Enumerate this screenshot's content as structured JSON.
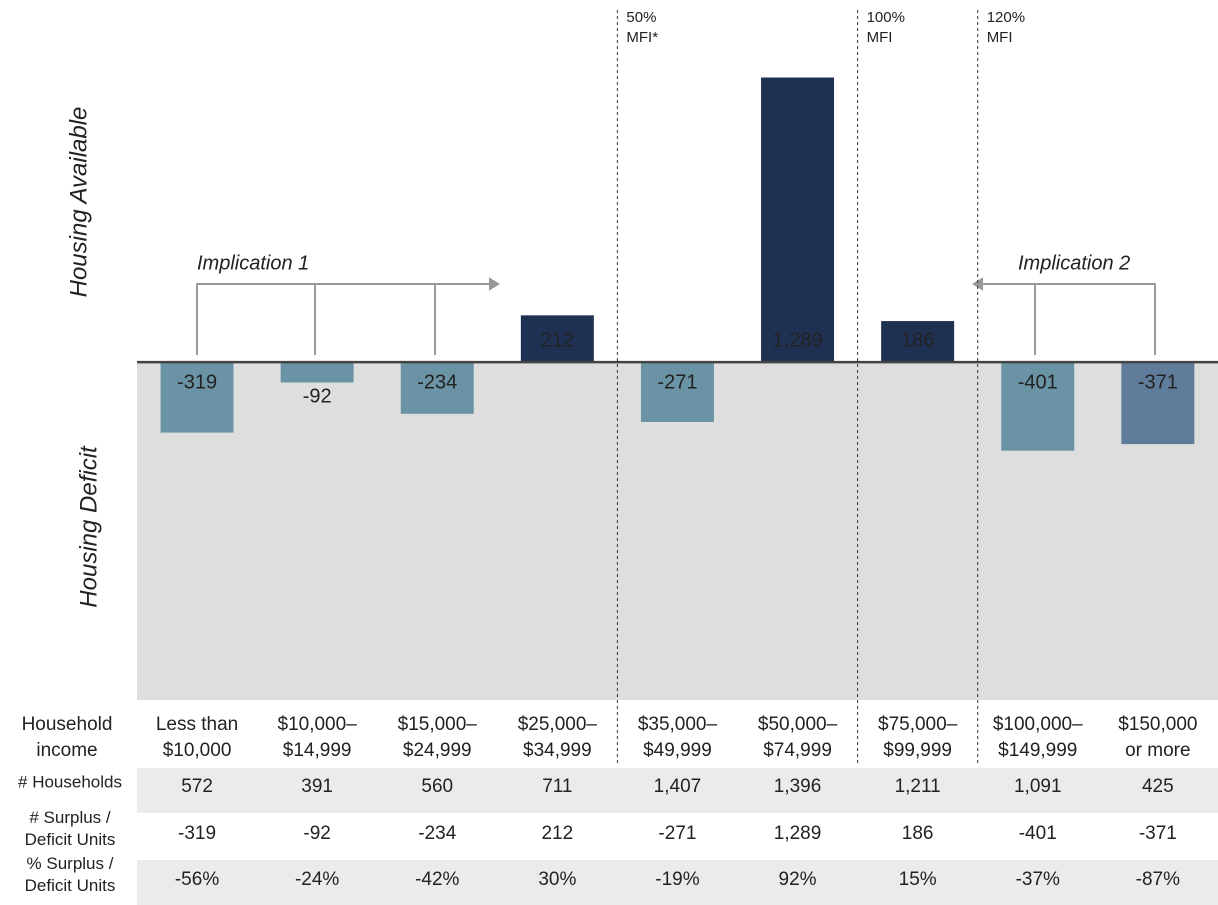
{
  "chart_data": {
    "type": "bar",
    "y_label_top": "Housing Available",
    "y_label_bottom": "Housing Deficit",
    "categories": [
      "Less than\n$10,000",
      "$10,000–\n$14,999",
      "$15,000–\n$24,999",
      "$25,000–\n$34,999",
      "$35,000–\n$49,999",
      "$50,000–\n$74,999",
      "$75,000–\n$99,999",
      "$100,000–\n$149,999",
      "$150,000\nor more"
    ],
    "values": [
      -319,
      -92,
      -234,
      212,
      -271,
      1289,
      186,
      -401,
      -371
    ],
    "value_labels": [
      "-319",
      "-92",
      "-234",
      "212",
      "-271",
      "1,289",
      "186",
      "-401",
      "-371"
    ],
    "colors": [
      "#6a93a5",
      "#6a93a5",
      "#6a93a5",
      "#1f3153",
      "#6a93a5",
      "#1f3153",
      "#1f3153",
      "#6a93a5",
      "#5f7d9a"
    ],
    "ylim": [
      -1530,
      1640
    ],
    "mfi_lines": [
      "50%\nMFI*",
      "100%\nMFI",
      "120%\nMFI"
    ],
    "implications": [
      "Implication 1",
      "Implication 2"
    ]
  },
  "table": {
    "header": "Household\nincome",
    "rows": [
      {
        "label": "# Households",
        "cells": [
          "572",
          "391",
          "560",
          "711",
          "1,407",
          "1,396",
          "1,211",
          "1,091",
          "425"
        ]
      },
      {
        "label": "# Surplus /\nDeficit Units",
        "cells": [
          "-319",
          "-92",
          "-234",
          "212",
          "-271",
          "1,289",
          "186",
          "-401",
          "-371"
        ]
      },
      {
        "label": "% Surplus /\nDeficit Units",
        "cells": [
          "-56%",
          "-24%",
          "-42%",
          "30%",
          "-19%",
          "92%",
          "15%",
          "-37%",
          "-87%"
        ]
      }
    ]
  }
}
